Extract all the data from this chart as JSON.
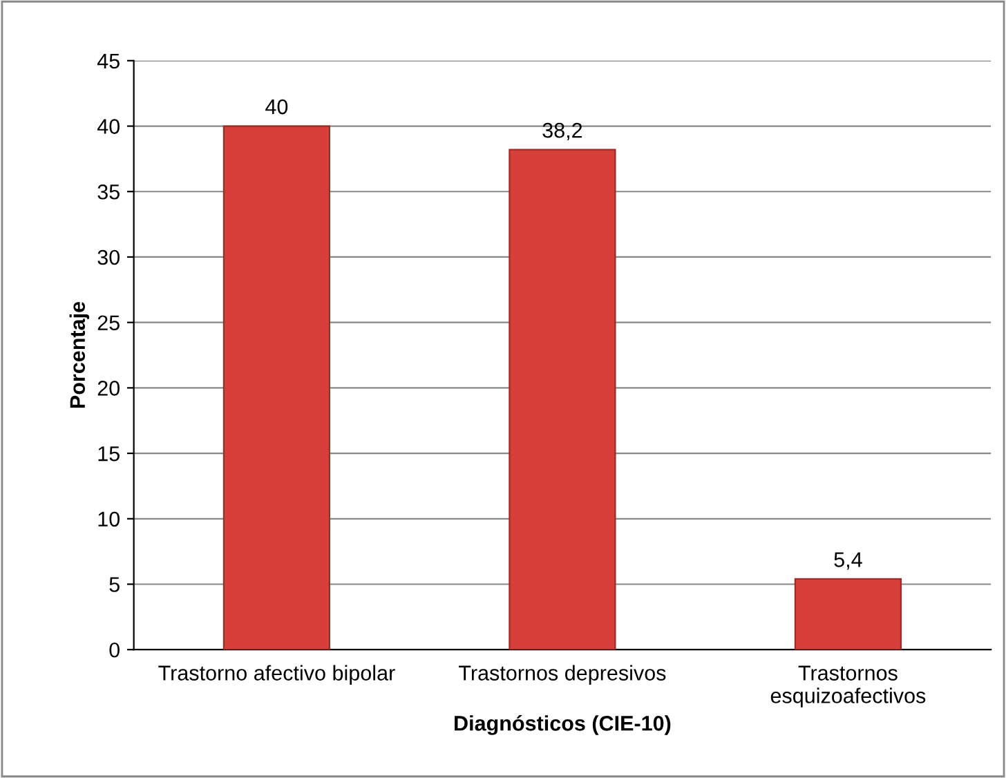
{
  "chart_data": {
    "type": "bar",
    "categories": [
      "Trastorno afectivo bipolar",
      "Trastornos depresivos",
      "Trastornos\nesquizoafectivos"
    ],
    "values": [
      40,
      38.2,
      5.4
    ],
    "value_labels": [
      "40",
      "38,2",
      "5,4"
    ],
    "color": "#d63f3a",
    "xlabel": "Diagnósticos (CIE-10)",
    "ylabel": "Porcentaje",
    "ylim": [
      0,
      45
    ],
    "yticks": [
      0,
      5,
      10,
      15,
      20,
      25,
      30,
      35,
      40,
      45
    ],
    "grid": "y",
    "legend": false
  }
}
